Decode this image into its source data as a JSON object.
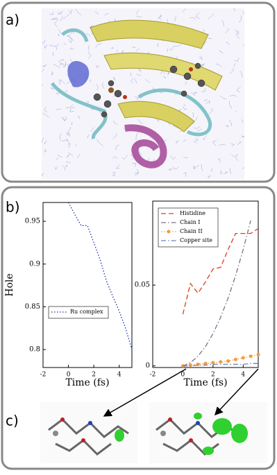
{
  "panel_labels": [
    "a)",
    "b)",
    "c)"
  ],
  "chart_data": [
    {
      "type": "line",
      "xlabel": "Time (fs)",
      "ylabel": "Hole",
      "x": [
        0,
        0.5,
        1,
        1.5,
        2,
        2.5,
        3,
        3.5,
        4,
        4.5,
        5
      ],
      "series": [
        {
          "name": "Ru complex",
          "color": "#1a2fa0",
          "dash": "dotted",
          "values": [
            0.972,
            0.958,
            0.945,
            0.945,
            0.925,
            0.905,
            0.88,
            0.862,
            0.845,
            0.825,
            0.8
          ]
        }
      ],
      "xlim": [
        -2,
        5
      ],
      "xticks": [
        -2,
        0,
        2,
        4
      ],
      "ylim": [
        0.779,
        0.972
      ],
      "yticks": [
        0.8,
        0.85,
        0.9,
        0.95
      ],
      "legend": "lower-left"
    },
    {
      "type": "line",
      "xlabel": "Time (fs)",
      "x": [
        0,
        0.5,
        1,
        1.5,
        2,
        2.5,
        3,
        3.5,
        4,
        4.5,
        5
      ],
      "series": [
        {
          "name": "Histidine",
          "color": "#e03a1e",
          "dash": "dashed",
          "values": [
            0.032,
            0.051,
            0.045,
            0.052,
            0.06,
            0.061,
            0.072,
            0.082,
            0.082,
            0.082,
            0.085
          ]
        },
        {
          "name": "Chain I",
          "color": "#7f6f8c",
          "dash": "dashdot",
          "values": [
            0,
            0.002,
            0.006,
            0.012,
            0.02,
            0.03,
            0.042,
            0.056,
            0.072,
            0.09,
            null
          ]
        },
        {
          "name": "Chain II",
          "color": "#f59a3a",
          "dash": "dotted",
          "marker": true,
          "values": [
            0,
            0.0005,
            0.001,
            0.0015,
            0.002,
            0.0025,
            0.003,
            0.004,
            0.005,
            0.006,
            0.007
          ]
        },
        {
          "name": "Copper site",
          "color": "#6f7fb5",
          "dash": "dashdot",
          "values": [
            0,
            0,
            0.0005,
            0.0005,
            0.001,
            0.001,
            0.001,
            0.001,
            0.001,
            0.0015,
            0.0015
          ]
        }
      ],
      "xlim": [
        -2,
        5
      ],
      "xticks": [
        -2,
        0,
        2,
        4
      ],
      "ylim": [
        -0.001,
        0.102
      ],
      "yticks": [
        0,
        0.05
      ],
      "legend": "upper-left"
    }
  ]
}
